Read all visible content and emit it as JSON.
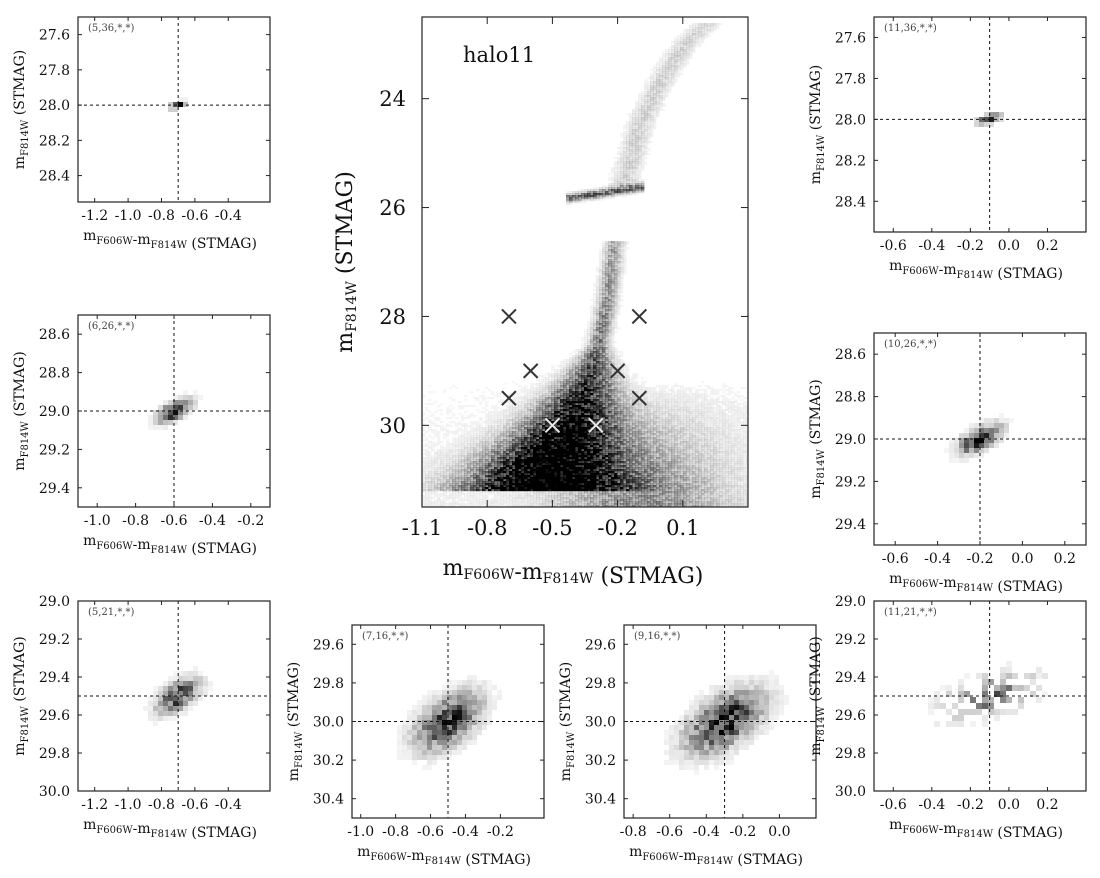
{
  "figure": {
    "main_label": "halo11",
    "main_xlabel": {
      "base": "m",
      "sub1": "F606W",
      "mid": "-m",
      "sub2": "F814W",
      "tail": " (STMAG)"
    },
    "main_ylabel": {
      "base": "m",
      "sub": "F814W",
      "tail": " (STMAG)"
    },
    "panel_xlabel": {
      "base": "m",
      "sub1": "F606W",
      "mid": "-m",
      "sub2": "F814W",
      "tail": " (STMAG)"
    },
    "panel_ylabel": {
      "base": "m",
      "sub": "F814W",
      "tail": " (STMAG)"
    },
    "colors": {
      "ink": "#111111",
      "frame": "#222222",
      "density": "#000000",
      "marker_dark": "#333333",
      "marker_light": "#e8e8e8"
    }
  },
  "chart_data": [
    {
      "id": "main-cmd",
      "type": "heatmap",
      "label": "halo11",
      "xlabel": "mF606W-mF814W (STMAG)",
      "ylabel": "mF814W (STMAG)",
      "xlim": [
        -1.1,
        0.4
      ],
      "ylim": [
        31.5,
        22.5
      ],
      "y_inverted": true,
      "xticks": [
        -1.1,
        -0.8,
        -0.5,
        -0.2,
        0.1
      ],
      "xtick_labels": [
        "-1.1",
        "-0.8",
        "-0.5",
        "-0.2",
        "0.1"
      ],
      "yticks": [
        24,
        26,
        28,
        30
      ],
      "ytick_labels": [
        "24",
        "26",
        "28",
        "30"
      ],
      "markers": [
        {
          "x": -0.7,
          "y": 28.0,
          "tone": "dark"
        },
        {
          "x": -0.1,
          "y": 28.0,
          "tone": "dark"
        },
        {
          "x": -0.6,
          "y": 29.0,
          "tone": "dark"
        },
        {
          "x": -0.2,
          "y": 29.0,
          "tone": "dark"
        },
        {
          "x": -0.7,
          "y": 29.5,
          "tone": "dark"
        },
        {
          "x": -0.1,
          "y": 29.5,
          "tone": "dark"
        },
        {
          "x": -0.5,
          "y": 30.0,
          "tone": "light"
        },
        {
          "x": -0.3,
          "y": 30.0,
          "tone": "light"
        }
      ],
      "features": {
        "main_sequence": {
          "x": [
            -0.55,
            -0.5,
            -0.42,
            -0.35,
            -0.3,
            -0.26,
            -0.22
          ],
          "y": [
            31.2,
            30.6,
            30.0,
            29.3,
            28.6,
            27.8,
            26.6
          ]
        },
        "subgiant_branch": {
          "x": [
            -0.4,
            -0.3,
            -0.2,
            -0.12
          ],
          "y": [
            25.8,
            25.72,
            25.65,
            25.6
          ]
        },
        "giant_branch": {
          "x": [
            -0.18,
            -0.14,
            -0.1,
            0.0,
            0.1,
            0.2
          ],
          "y": [
            25.6,
            25.0,
            24.4,
            23.6,
            23.0,
            22.6
          ]
        }
      }
    },
    {
      "id": "p-5-36",
      "type": "heatmap",
      "label": "(5,36,*,*)",
      "xlim": [
        -1.3,
        -0.15
      ],
      "ylim": [
        28.55,
        27.5
      ],
      "xticks": [
        -1.2,
        -1.0,
        -0.8,
        -0.6,
        -0.4
      ],
      "xtick_labels": [
        "-1.2",
        "-1.0",
        "-0.8",
        "-0.6",
        "-0.4"
      ],
      "yticks": [
        27.6,
        27.8,
        28.0,
        28.2,
        28.4
      ],
      "ytick_labels": [
        "27.6",
        "27.8",
        "28.0",
        "28.2",
        "28.4"
      ],
      "center": {
        "x": -0.7,
        "y": 28.0
      },
      "spread": {
        "x": 0.02,
        "y": 0.015
      },
      "tilt": 0.3,
      "peak": 0.95
    },
    {
      "id": "p-11-36",
      "type": "heatmap",
      "label": "(11,36,*,*)",
      "xlim": [
        -0.7,
        0.4
      ],
      "ylim": [
        28.55,
        27.5
      ],
      "xticks": [
        -0.6,
        -0.4,
        -0.2,
        0.0,
        0.2
      ],
      "xtick_labels": [
        "-0.6",
        "-0.4",
        "-0.2",
        "0.0",
        "0.2"
      ],
      "yticks": [
        27.6,
        27.8,
        28.0,
        28.2,
        28.4
      ],
      "ytick_labels": [
        "27.6",
        "27.8",
        "28.0",
        "28.2",
        "28.4"
      ],
      "center": {
        "x": -0.1,
        "y": 28.0
      },
      "spread": {
        "x": 0.025,
        "y": 0.018
      },
      "tilt": 0.3,
      "peak": 0.95
    },
    {
      "id": "p-6-26",
      "type": "heatmap",
      "label": "(6,26,*,*)",
      "xlim": [
        -1.1,
        -0.1
      ],
      "ylim": [
        29.5,
        28.5
      ],
      "xticks": [
        -1.0,
        -0.8,
        -0.6,
        -0.4,
        -0.2
      ],
      "xtick_labels": [
        "-1.0",
        "-0.8",
        "-0.6",
        "-0.4",
        "-0.2"
      ],
      "yticks": [
        28.6,
        28.8,
        29.0,
        29.2,
        29.4
      ],
      "ytick_labels": [
        "28.6",
        "28.8",
        "29.0",
        "29.2",
        "29.4"
      ],
      "center": {
        "x": -0.6,
        "y": 29.0
      },
      "spread": {
        "x": 0.04,
        "y": 0.035
      },
      "tilt": 0.55,
      "peak": 0.9
    },
    {
      "id": "p-10-26",
      "type": "heatmap",
      "label": "(10,26,*,*)",
      "xlim": [
        -0.7,
        0.3
      ],
      "ylim": [
        29.5,
        28.5
      ],
      "xticks": [
        -0.6,
        -0.4,
        -0.2,
        0.0,
        0.2
      ],
      "xtick_labels": [
        "-0.6",
        "-0.4",
        "-0.2",
        "0.0",
        "0.2"
      ],
      "yticks": [
        28.6,
        28.8,
        29.0,
        29.2,
        29.4
      ],
      "ytick_labels": [
        "28.6",
        "28.8",
        "29.0",
        "29.2",
        "29.4"
      ],
      "center": {
        "x": -0.2,
        "y": 29.0
      },
      "spread": {
        "x": 0.045,
        "y": 0.04
      },
      "tilt": 0.55,
      "peak": 0.9
    },
    {
      "id": "p-5-21",
      "type": "heatmap",
      "label": "(5,21,*,*)",
      "xlim": [
        -1.3,
        -0.15
      ],
      "ylim": [
        30.0,
        29.0
      ],
      "xticks": [
        -1.2,
        -1.0,
        -0.8,
        -0.6,
        -0.4
      ],
      "xtick_labels": [
        "-1.2",
        "-1.0",
        "-0.8",
        "-0.6",
        "-0.4"
      ],
      "yticks": [
        29.0,
        29.2,
        29.4,
        29.6,
        29.8,
        30.0
      ],
      "ytick_labels": [
        "29.0",
        "29.2",
        "29.4",
        "29.6",
        "29.8",
        "30.0"
      ],
      "center": {
        "x": -0.7,
        "y": 29.5
      },
      "spread": {
        "x": 0.06,
        "y": 0.055
      },
      "tilt": 0.7,
      "peak": 0.75
    },
    {
      "id": "p-7-16",
      "type": "heatmap",
      "label": "(7,16,*,*)",
      "xlim": [
        -1.05,
        0.05
      ],
      "ylim": [
        30.5,
        29.5
      ],
      "xticks": [
        -1.0,
        -0.8,
        -0.6,
        -0.4,
        -0.2
      ],
      "xtick_labels": [
        "-1.0",
        "-0.8",
        "-0.6",
        "-0.4",
        "-0.2"
      ],
      "yticks": [
        29.6,
        29.8,
        30.0,
        30.2,
        30.4
      ],
      "ytick_labels": [
        "29.6",
        "29.8",
        "30.0",
        "30.2",
        "30.4"
      ],
      "center": {
        "x": -0.5,
        "y": 30.0
      },
      "spread": {
        "x": 0.09,
        "y": 0.09
      },
      "tilt": 0.75,
      "peak": 0.85
    },
    {
      "id": "p-9-16",
      "type": "heatmap",
      "label": "(9,16,*,*)",
      "xlim": [
        -0.85,
        0.2
      ],
      "ylim": [
        30.5,
        29.5
      ],
      "xticks": [
        -0.8,
        -0.6,
        -0.4,
        -0.2,
        0.0
      ],
      "xtick_labels": [
        "-0.8",
        "-0.6",
        "-0.4",
        "-0.2",
        "0.0"
      ],
      "yticks": [
        29.6,
        29.8,
        30.0,
        30.2,
        30.4
      ],
      "ytick_labels": [
        "29.6",
        "29.8",
        "30.0",
        "30.2",
        "30.4"
      ],
      "center": {
        "x": -0.3,
        "y": 30.0
      },
      "spread": {
        "x": 0.1,
        "y": 0.1
      },
      "tilt": 0.7,
      "peak": 0.85
    },
    {
      "id": "p-11-21",
      "type": "heatmap",
      "label": "(11,21,*,*)",
      "xlim": [
        -0.7,
        0.4
      ],
      "ylim": [
        30.0,
        29.0
      ],
      "xticks": [
        -0.6,
        -0.4,
        -0.2,
        0.0,
        0.2
      ],
      "xtick_labels": [
        "-0.6",
        "-0.4",
        "-0.2",
        "0.0",
        "0.2"
      ],
      "yticks": [
        29.0,
        29.2,
        29.4,
        29.6,
        29.8,
        30.0
      ],
      "ytick_labels": [
        "29.0",
        "29.2",
        "29.4",
        "29.6",
        "29.8",
        "30.0"
      ],
      "center": {
        "x": -0.1,
        "y": 29.5
      },
      "spread": {
        "x": 0.1,
        "y": 0.08
      },
      "tilt": 0.3,
      "peak": 0.55,
      "sparse": true
    }
  ]
}
